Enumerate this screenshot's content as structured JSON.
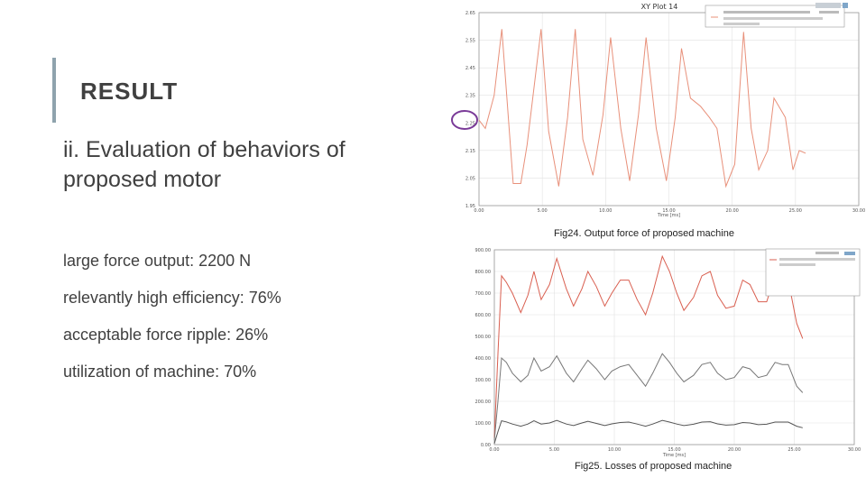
{
  "slide": {
    "title": "RESULT",
    "subtitle": "ii. Evaluation of behaviors of proposed motor",
    "bullets": [
      "large force output: 2200 N",
      "relevantly high efficiency: 76%",
      "acceptable force ripple: 26%",
      "utilization of machine: 70%"
    ],
    "fig1_caption": "Fig24. Output force of proposed machine",
    "fig2_caption": "Fig25. Losses of proposed machine"
  },
  "chart_data": [
    {
      "type": "line",
      "title": "XY Plot 14",
      "xlabel": "Time [ms]",
      "x_ticks": [
        "0.00",
        "5.00",
        "10.00",
        "15.00",
        "20.00",
        "25.00",
        "30.00"
      ],
      "y_ticks": [
        "1.95",
        "2.05",
        "2.15",
        "2.25",
        "2.35",
        "2.45",
        "2.55",
        "2.65"
      ],
      "xlim": [
        0,
        30
      ],
      "ylim": [
        1.95,
        2.65
      ],
      "grid": true,
      "legend_placement": "top-right",
      "series_colors": [
        "#e8907a"
      ],
      "series": [
        {
          "x": [
            0.0,
            0.5,
            1.2,
            1.8,
            2.7,
            3.3,
            3.8,
            4.9,
            5.5,
            6.3,
            7.0,
            7.6,
            8.2,
            9.0,
            9.8,
            10.4,
            11.2,
            11.9,
            12.6,
            13.2,
            14.0,
            14.8,
            15.5,
            16.0,
            16.7,
            17.5,
            18.2,
            18.8,
            19.5,
            20.2,
            20.9,
            21.5,
            22.1,
            22.8,
            23.3,
            24.2,
            24.8,
            25.3,
            25.8
          ],
          "y": [
            2.26,
            2.23,
            2.35,
            2.59,
            2.03,
            2.03,
            2.17,
            2.59,
            2.22,
            2.02,
            2.27,
            2.59,
            2.19,
            2.06,
            2.28,
            2.56,
            2.23,
            2.04,
            2.28,
            2.56,
            2.23,
            2.04,
            2.27,
            2.52,
            2.34,
            2.31,
            2.27,
            2.23,
            2.02,
            2.1,
            2.58,
            2.23,
            2.08,
            2.15,
            2.34,
            2.27,
            2.08,
            2.15,
            2.14
          ]
        }
      ]
    },
    {
      "type": "line",
      "xlabel": "Time [ms]",
      "x_ticks": [
        "0.00",
        "5.00",
        "10.00",
        "15.00",
        "20.00",
        "25.00",
        "30.00"
      ],
      "y_ticks": [
        "0.00",
        "100.00",
        "200.00",
        "300.00",
        "400.00",
        "500.00",
        "600.00",
        "700.00",
        "800.00",
        "900.00"
      ],
      "xlim": [
        0,
        30
      ],
      "ylim": [
        0,
        900
      ],
      "grid": true,
      "legend_placement": "top-right",
      "series_colors": [
        "#d95f50",
        "#777777",
        "#555555"
      ],
      "series": [
        {
          "x": [
            0.0,
            0.3,
            0.6,
            1.0,
            1.5,
            2.2,
            2.8,
            3.3,
            3.9,
            4.6,
            5.2,
            6.0,
            6.6,
            7.3,
            7.8,
            8.5,
            9.2,
            9.8,
            10.5,
            11.2,
            11.9,
            12.6,
            13.2,
            14.0,
            14.6,
            15.2,
            15.8,
            16.6,
            17.3,
            18.0,
            18.6,
            19.3,
            20.0,
            20.7,
            21.3,
            22.0,
            22.7,
            23.4,
            24.0,
            24.5,
            25.2,
            25.7
          ],
          "y": [
            30,
            420,
            780,
            750,
            700,
            610,
            690,
            800,
            670,
            740,
            860,
            720,
            640,
            720,
            800,
            730,
            640,
            700,
            760,
            760,
            670,
            600,
            700,
            870,
            800,
            700,
            620,
            680,
            780,
            800,
            690,
            630,
            640,
            760,
            740,
            660,
            660,
            780,
            770,
            760,
            560,
            490
          ]
        },
        {
          "x": [
            0.0,
            0.3,
            0.6,
            1.0,
            1.5,
            2.2,
            2.8,
            3.3,
            3.9,
            4.6,
            5.2,
            6.0,
            6.6,
            7.3,
            7.8,
            8.5,
            9.2,
            9.8,
            10.5,
            11.2,
            11.9,
            12.6,
            13.2,
            14.0,
            14.6,
            15.2,
            15.8,
            16.6,
            17.3,
            18.0,
            18.6,
            19.3,
            20.0,
            20.7,
            21.3,
            22.0,
            22.7,
            23.4,
            24.0,
            24.5,
            25.2,
            25.7
          ],
          "y": [
            20,
            200,
            400,
            380,
            330,
            290,
            320,
            400,
            340,
            360,
            410,
            330,
            290,
            350,
            390,
            350,
            300,
            340,
            360,
            370,
            320,
            270,
            330,
            420,
            380,
            330,
            290,
            320,
            370,
            380,
            330,
            300,
            310,
            360,
            350,
            310,
            320,
            380,
            370,
            370,
            270,
            240
          ]
        },
        {
          "x": [
            0.0,
            0.3,
            0.6,
            1.0,
            1.5,
            2.2,
            2.8,
            3.3,
            3.9,
            4.6,
            5.2,
            6.0,
            6.6,
            7.3,
            7.8,
            8.5,
            9.2,
            9.8,
            10.5,
            11.2,
            11.9,
            12.6,
            13.2,
            14.0,
            14.6,
            15.2,
            15.8,
            16.6,
            17.3,
            18.0,
            18.6,
            19.3,
            20.0,
            20.7,
            21.3,
            22.0,
            22.7,
            23.4,
            24.0,
            24.5,
            25.2,
            25.7
          ],
          "y": [
            5,
            60,
            110,
            105,
            95,
            85,
            95,
            110,
            95,
            100,
            112,
            95,
            88,
            100,
            108,
            98,
            88,
            96,
            102,
            104,
            95,
            85,
            95,
            112,
            104,
            95,
            88,
            94,
            104,
            106,
            96,
            90,
            92,
            102,
            100,
            92,
            94,
            104,
            104,
            104,
            85,
            78
          ]
        }
      ]
    }
  ]
}
